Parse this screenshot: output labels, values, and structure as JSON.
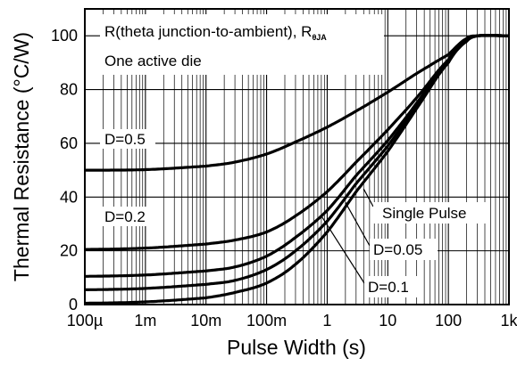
{
  "chart_data": {
    "type": "line",
    "xscale": "log",
    "xlabel": "Pulse Width (s)",
    "ylabel": "Thermal Resistance (°C/W)",
    "xlim": [
      0.0001,
      1000
    ],
    "ylim": [
      0,
      110
    ],
    "grid": true,
    "legend": "none",
    "xticks": [
      {
        "value": 0.0001,
        "label": "100µ"
      },
      {
        "value": 0.001,
        "label": "1m"
      },
      {
        "value": 0.01,
        "label": "10m"
      },
      {
        "value": 0.1,
        "label": "100m"
      },
      {
        "value": 1,
        "label": "1"
      },
      {
        "value": 10,
        "label": "10"
      },
      {
        "value": 100,
        "label": "100"
      },
      {
        "value": 1000,
        "label": "1k"
      }
    ],
    "yticks": [
      {
        "value": 0,
        "label": "0"
      },
      {
        "value": 20,
        "label": "20"
      },
      {
        "value": 40,
        "label": "40"
      },
      {
        "value": 60,
        "label": "60"
      },
      {
        "value": 80,
        "label": "80"
      },
      {
        "value": 100,
        "label": "100"
      }
    ],
    "annotation": {
      "line1": "R(theta junction-to-ambient), R",
      "line1_sub": "θJA",
      "line2": "One active die"
    },
    "series": [
      {
        "name": "D=0.5",
        "x": [
          0.0001,
          0.001,
          0.01,
          0.03,
          0.1,
          0.3,
          1,
          3,
          10,
          30,
          100,
          200,
          300,
          1000
        ],
        "y": [
          50,
          50.2,
          51.5,
          53,
          56,
          60.5,
          66,
          72,
          79,
          86,
          93,
          99,
          100,
          100
        ]
      },
      {
        "name": "D=0.2",
        "x": [
          0.0001,
          0.001,
          0.01,
          0.03,
          0.1,
          0.3,
          1,
          3,
          10,
          30,
          100,
          200,
          300,
          1000
        ],
        "y": [
          20.5,
          21,
          22.5,
          24,
          27,
          33,
          42,
          53,
          65,
          77,
          91,
          98,
          100,
          100
        ]
      },
      {
        "name": "D=0.1",
        "x": [
          0.0001,
          0.001,
          0.01,
          0.03,
          0.1,
          0.3,
          1,
          3,
          10,
          30,
          100,
          200,
          300,
          1000
        ],
        "y": [
          10.5,
          11,
          12.5,
          14,
          18,
          25,
          35,
          48,
          61,
          75,
          91,
          98,
          100,
          100
        ]
      },
      {
        "name": "D=0.05",
        "x": [
          0.0001,
          0.001,
          0.01,
          0.03,
          0.1,
          0.3,
          1,
          3,
          10,
          30,
          100,
          200,
          300,
          1000
        ],
        "y": [
          5.5,
          6,
          7.5,
          9,
          13,
          20,
          31,
          45,
          59,
          74,
          90,
          98,
          100,
          100
        ]
      },
      {
        "name": "Single Pulse",
        "x": [
          0.0001,
          0.001,
          0.01,
          0.03,
          0.1,
          0.3,
          1,
          3,
          10,
          30,
          100,
          200,
          300,
          1000
        ],
        "y": [
          0.5,
          1,
          2.5,
          4.5,
          8,
          15,
          27,
          42,
          57,
          73,
          90,
          98,
          100,
          100
        ]
      }
    ],
    "series_labels": [
      {
        "text": "D=0.5",
        "series": "D=0.5",
        "pointer_x": 0.0001,
        "pointer_y": 56
      },
      {
        "text": "D=0.2",
        "series": "D=0.2",
        "pointer_x": 0.0001,
        "pointer_y": 28
      },
      {
        "text": "Single Pulse",
        "series": "Single Pulse",
        "pointer_x": 4,
        "pointer_y": 43
      },
      {
        "text": "D=0.05",
        "series": "D=0.05",
        "pointer_x": 2,
        "pointer_y": 38
      },
      {
        "text": "D=0.1",
        "series": "D=0.1",
        "pointer_x": 0.8,
        "pointer_y": 33
      }
    ]
  }
}
